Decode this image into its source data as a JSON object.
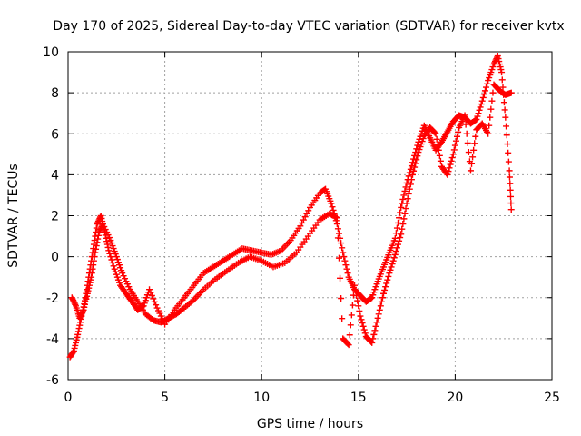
{
  "chart_data": {
    "type": "scatter",
    "title": "Day 170 of 2025, Sidereal Day-to-day VTEC variation (SDTVAR) for receiver kvtx",
    "xlabel": "GPS time / hours",
    "ylabel": "SDTVAR / TECUs",
    "xlim": [
      0,
      25
    ],
    "ylim": [
      -6,
      10
    ],
    "xticks": [
      0,
      5,
      10,
      15,
      20,
      25
    ],
    "yticks": [
      -6,
      -4,
      -2,
      0,
      2,
      4,
      6,
      8,
      10
    ],
    "grid": true,
    "legend": "none",
    "marker": "plus",
    "marker_color": "#ff0000",
    "series": [
      {
        "x": [
          0.1,
          0.3,
          0.5,
          0.7,
          0.9,
          1.1,
          1.3,
          1.5,
          1.7,
          1.9,
          2.1,
          2.4,
          2.7,
          3.0,
          3.3,
          3.6,
          3.9,
          4.2,
          4.6,
          5.0,
          5.5,
          6.0,
          6.5,
          7.0,
          7.5,
          8.0,
          8.5,
          9.0,
          9.5,
          10.0,
          10.5,
          11.0,
          11.5,
          12.0,
          12.5,
          13.0,
          13.3,
          13.6,
          13.9,
          14.2,
          14.5,
          14.8,
          15.1,
          15.4,
          15.7,
          16.0,
          16.3,
          16.6,
          16.9,
          17.2,
          17.5,
          17.8,
          18.1,
          18.4,
          18.7,
          19.0,
          19.3,
          19.6,
          19.9,
          20.2,
          20.5,
          20.8,
          21.1,
          21.4,
          21.7,
          22.0,
          22.2,
          22.4,
          22.6,
          22.8,
          22.9
        ],
        "y": [
          -4.9,
          -4.6,
          -3.8,
          -2.9,
          -2.0,
          -0.8,
          0.4,
          1.6,
          2.0,
          1.2,
          0.3,
          -0.6,
          -1.4,
          -1.8,
          -2.2,
          -2.6,
          -2.4,
          -1.6,
          -2.5,
          -3.3,
          -2.6,
          -2.0,
          -1.4,
          -0.8,
          -0.5,
          -0.2,
          0.1,
          0.4,
          0.3,
          0.2,
          0.1,
          0.3,
          0.8,
          1.5,
          2.4,
          3.1,
          3.3,
          2.6,
          1.6,
          0.2,
          -1.0,
          -1.6,
          -1.9,
          -2.2,
          -2.0,
          -1.2,
          -0.5,
          0.2,
          0.9,
          2.4,
          3.6,
          4.6,
          5.6,
          6.4,
          5.8,
          5.2,
          5.6,
          6.1,
          6.6,
          6.9,
          6.8,
          6.5,
          6.7,
          7.6,
          8.6,
          9.4,
          9.8,
          9.0,
          6.8,
          4.2,
          2.3
        ]
      },
      {
        "x": [
          0.2,
          0.4,
          0.6,
          0.8,
          1.0,
          1.2,
          1.4,
          1.6,
          1.8,
          2.2,
          2.5,
          2.8,
          3.2,
          3.6,
          4.0,
          4.4,
          4.8,
          5.2,
          5.6,
          6.0,
          6.5,
          7.0,
          7.6,
          8.2,
          8.8,
          9.4,
          10.0,
          10.6,
          11.2,
          11.8,
          12.4,
          13.0,
          13.5,
          13.9,
          14.2,
          14.5,
          14.8,
          15.1,
          15.4,
          15.7,
          16.0,
          16.3,
          16.6,
          16.9,
          17.2,
          17.5,
          17.8,
          18.1,
          18.4,
          18.7,
          19.0,
          19.3,
          19.6,
          19.9,
          20.2,
          20.5,
          20.8,
          21.1,
          21.4,
          21.7,
          22.0,
          22.3,
          22.6,
          22.9
        ],
        "y": [
          -2.0,
          -2.4,
          -3.0,
          -2.6,
          -1.8,
          -1.0,
          0.2,
          1.2,
          1.6,
          0.8,
          0.0,
          -0.8,
          -1.6,
          -2.2,
          -2.8,
          -3.1,
          -3.2,
          -3.0,
          -2.8,
          -2.5,
          -2.1,
          -1.6,
          -1.1,
          -0.7,
          -0.3,
          0.0,
          -0.2,
          -0.5,
          -0.3,
          0.2,
          1.0,
          1.8,
          2.1,
          1.9,
          -4.0,
          -4.3,
          -1.4,
          -2.9,
          -3.9,
          -4.2,
          -3.0,
          -1.8,
          -0.8,
          0.1,
          1.1,
          2.6,
          4.0,
          5.1,
          5.9,
          6.3,
          6.0,
          4.4,
          4.0,
          5.0,
          6.3,
          6.9,
          4.2,
          6.2,
          6.5,
          6.0,
          8.4,
          8.1,
          7.9,
          8.0
        ]
      }
    ]
  }
}
